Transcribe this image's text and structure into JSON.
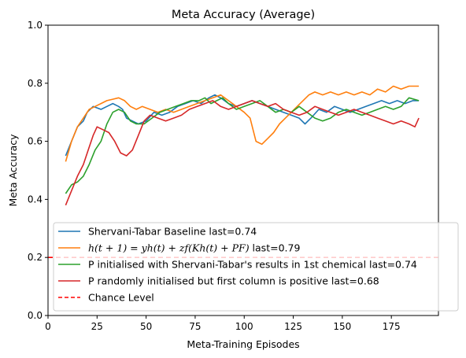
{
  "chart_data": {
    "type": "line",
    "title": "Meta Accuracy (Average)",
    "xlabel": "Meta-Training Episodes",
    "ylabel": "Meta Accuracy",
    "xlim": [
      0,
      199
    ],
    "ylim": [
      0,
      1.0
    ],
    "xticks": [
      0,
      25,
      50,
      75,
      100,
      125,
      150,
      175
    ],
    "yticks": [
      0.0,
      0.2,
      0.4,
      0.6,
      0.8,
      1.0
    ],
    "xtick_labels": [
      "0",
      "25",
      "50",
      "75",
      "100",
      "125",
      "150",
      "175"
    ],
    "ytick_labels": [
      "0.0",
      "0.2",
      "0.4",
      "0.6",
      "0.8",
      "1.0"
    ],
    "grid": false,
    "legend_position": "lower-right",
    "series": [
      {
        "name": "Shervani-Tabar Baseline last=0.74",
        "color": "#1f77b4",
        "points": [
          [
            9,
            0.55
          ],
          [
            12,
            0.6
          ],
          [
            15,
            0.65
          ],
          [
            18,
            0.67
          ],
          [
            20,
            0.7
          ],
          [
            23,
            0.72
          ],
          [
            27,
            0.71
          ],
          [
            30,
            0.72
          ],
          [
            33,
            0.73
          ],
          [
            36,
            0.72
          ],
          [
            38,
            0.71
          ],
          [
            40,
            0.68
          ],
          [
            43,
            0.67
          ],
          [
            46,
            0.66
          ],
          [
            50,
            0.67
          ],
          [
            54,
            0.7
          ],
          [
            58,
            0.69
          ],
          [
            62,
            0.7
          ],
          [
            66,
            0.72
          ],
          [
            70,
            0.73
          ],
          [
            74,
            0.74
          ],
          [
            78,
            0.73
          ],
          [
            82,
            0.75
          ],
          [
            85,
            0.76
          ],
          [
            88,
            0.75
          ],
          [
            92,
            0.73
          ],
          [
            96,
            0.72
          ],
          [
            100,
            0.73
          ],
          [
            104,
            0.74
          ],
          [
            108,
            0.73
          ],
          [
            112,
            0.72
          ],
          [
            116,
            0.71
          ],
          [
            120,
            0.7
          ],
          [
            124,
            0.69
          ],
          [
            128,
            0.68
          ],
          [
            131,
            0.66
          ],
          [
            134,
            0.68
          ],
          [
            138,
            0.71
          ],
          [
            142,
            0.7
          ],
          [
            146,
            0.72
          ],
          [
            150,
            0.71
          ],
          [
            154,
            0.7
          ],
          [
            158,
            0.71
          ],
          [
            162,
            0.72
          ],
          [
            166,
            0.73
          ],
          [
            170,
            0.74
          ],
          [
            174,
            0.73
          ],
          [
            178,
            0.74
          ],
          [
            182,
            0.73
          ],
          [
            186,
            0.74
          ],
          [
            189,
            0.74
          ]
        ]
      },
      {
        "name": "$h(t+1) = yh(t) + zf(Kh(t) + PF)$ last=0.79",
        "legend_parts": [
          "h(t + 1) = yh(t) + zf(Kh(t) + PF)",
          " last=0.79"
        ],
        "color": "#ff7f0e",
        "points": [
          [
            9,
            0.53
          ],
          [
            12,
            0.6
          ],
          [
            15,
            0.65
          ],
          [
            18,
            0.68
          ],
          [
            21,
            0.71
          ],
          [
            24,
            0.72
          ],
          [
            27,
            0.73
          ],
          [
            30,
            0.74
          ],
          [
            33,
            0.745
          ],
          [
            36,
            0.75
          ],
          [
            39,
            0.74
          ],
          [
            42,
            0.72
          ],
          [
            45,
            0.71
          ],
          [
            48,
            0.72
          ],
          [
            52,
            0.71
          ],
          [
            56,
            0.7
          ],
          [
            60,
            0.71
          ],
          [
            64,
            0.7
          ],
          [
            68,
            0.71
          ],
          [
            72,
            0.72
          ],
          [
            76,
            0.73
          ],
          [
            80,
            0.74
          ],
          [
            84,
            0.75
          ],
          [
            88,
            0.76
          ],
          [
            92,
            0.74
          ],
          [
            96,
            0.72
          ],
          [
            100,
            0.7
          ],
          [
            103,
            0.68
          ],
          [
            106,
            0.6
          ],
          [
            109,
            0.59
          ],
          [
            112,
            0.61
          ],
          [
            115,
            0.63
          ],
          [
            118,
            0.66
          ],
          [
            121,
            0.68
          ],
          [
            124,
            0.7
          ],
          [
            127,
            0.72
          ],
          [
            130,
            0.74
          ],
          [
            133,
            0.76
          ],
          [
            136,
            0.77
          ],
          [
            140,
            0.76
          ],
          [
            144,
            0.77
          ],
          [
            148,
            0.76
          ],
          [
            152,
            0.77
          ],
          [
            156,
            0.76
          ],
          [
            160,
            0.77
          ],
          [
            164,
            0.76
          ],
          [
            168,
            0.78
          ],
          [
            172,
            0.77
          ],
          [
            176,
            0.79
          ],
          [
            180,
            0.78
          ],
          [
            184,
            0.79
          ],
          [
            189,
            0.79
          ]
        ]
      },
      {
        "name": "P initialised with Shervani-Tabar's results in 1st chemical last=0.74",
        "color": "#2ca02c",
        "points": [
          [
            9,
            0.42
          ],
          [
            12,
            0.45
          ],
          [
            15,
            0.46
          ],
          [
            18,
            0.48
          ],
          [
            21,
            0.52
          ],
          [
            24,
            0.57
          ],
          [
            27,
            0.6
          ],
          [
            30,
            0.66
          ],
          [
            33,
            0.7
          ],
          [
            36,
            0.71
          ],
          [
            39,
            0.7
          ],
          [
            42,
            0.67
          ],
          [
            45,
            0.66
          ],
          [
            49,
            0.66
          ],
          [
            53,
            0.68
          ],
          [
            57,
            0.7
          ],
          [
            61,
            0.71
          ],
          [
            65,
            0.72
          ],
          [
            69,
            0.73
          ],
          [
            73,
            0.74
          ],
          [
            77,
            0.74
          ],
          [
            80,
            0.75
          ],
          [
            83,
            0.73
          ],
          [
            86,
            0.74
          ],
          [
            89,
            0.75
          ],
          [
            92,
            0.73
          ],
          [
            96,
            0.71
          ],
          [
            100,
            0.72
          ],
          [
            104,
            0.73
          ],
          [
            108,
            0.74
          ],
          [
            112,
            0.72
          ],
          [
            116,
            0.7
          ],
          [
            120,
            0.71
          ],
          [
            124,
            0.7
          ],
          [
            128,
            0.72
          ],
          [
            132,
            0.7
          ],
          [
            136,
            0.68
          ],
          [
            140,
            0.67
          ],
          [
            144,
            0.68
          ],
          [
            148,
            0.7
          ],
          [
            152,
            0.71
          ],
          [
            156,
            0.7
          ],
          [
            160,
            0.69
          ],
          [
            164,
            0.7
          ],
          [
            168,
            0.71
          ],
          [
            172,
            0.72
          ],
          [
            176,
            0.71
          ],
          [
            180,
            0.72
          ],
          [
            184,
            0.75
          ],
          [
            189,
            0.74
          ]
        ]
      },
      {
        "name": "P randomly initialised but first column is positive last=0.68",
        "color": "#d62728",
        "points": [
          [
            9,
            0.38
          ],
          [
            12,
            0.43
          ],
          [
            15,
            0.48
          ],
          [
            18,
            0.52
          ],
          [
            21,
            0.58
          ],
          [
            23,
            0.62
          ],
          [
            25,
            0.65
          ],
          [
            28,
            0.64
          ],
          [
            31,
            0.63
          ],
          [
            34,
            0.6
          ],
          [
            37,
            0.56
          ],
          [
            40,
            0.55
          ],
          [
            43,
            0.57
          ],
          [
            46,
            0.62
          ],
          [
            49,
            0.67
          ],
          [
            52,
            0.69
          ],
          [
            56,
            0.68
          ],
          [
            60,
            0.67
          ],
          [
            64,
            0.68
          ],
          [
            68,
            0.69
          ],
          [
            72,
            0.71
          ],
          [
            76,
            0.72
          ],
          [
            80,
            0.73
          ],
          [
            84,
            0.74
          ],
          [
            88,
            0.72
          ],
          [
            92,
            0.71
          ],
          [
            96,
            0.72
          ],
          [
            100,
            0.73
          ],
          [
            104,
            0.74
          ],
          [
            108,
            0.73
          ],
          [
            112,
            0.72
          ],
          [
            116,
            0.73
          ],
          [
            120,
            0.71
          ],
          [
            124,
            0.7
          ],
          [
            128,
            0.69
          ],
          [
            132,
            0.7
          ],
          [
            136,
            0.72
          ],
          [
            140,
            0.71
          ],
          [
            144,
            0.7
          ],
          [
            148,
            0.69
          ],
          [
            152,
            0.7
          ],
          [
            156,
            0.71
          ],
          [
            160,
            0.7
          ],
          [
            164,
            0.69
          ],
          [
            168,
            0.68
          ],
          [
            172,
            0.67
          ],
          [
            176,
            0.66
          ],
          [
            180,
            0.67
          ],
          [
            184,
            0.66
          ],
          [
            187,
            0.65
          ],
          [
            189,
            0.68
          ]
        ]
      }
    ],
    "reference_lines": [
      {
        "name": "Chance Level",
        "y": 0.2,
        "color": "#ff0000",
        "style": "dashed"
      }
    ]
  }
}
